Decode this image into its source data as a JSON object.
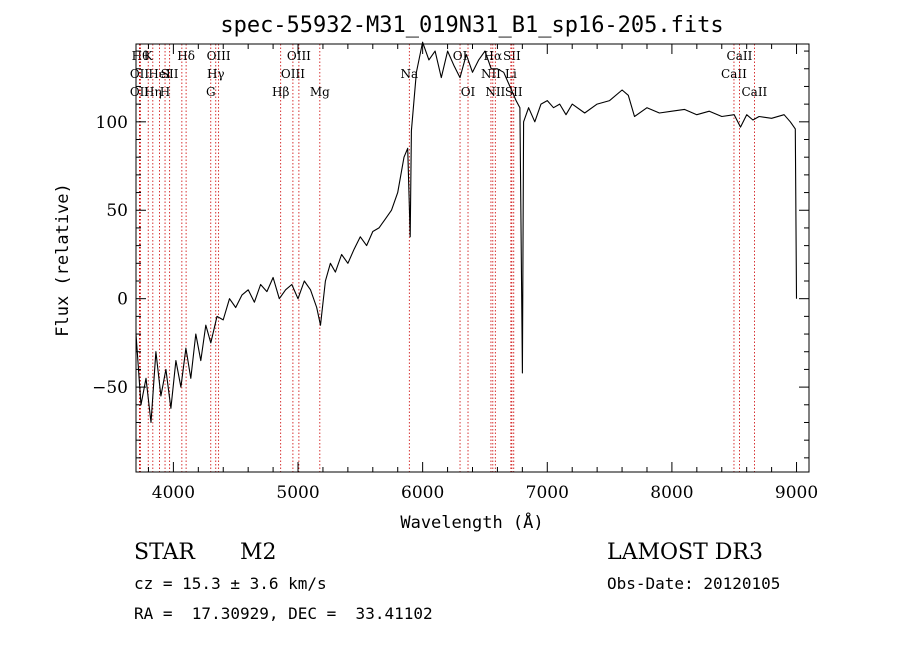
{
  "chart_data": {
    "type": "line",
    "title": "spec-55932-M31_019N31_B1_sp16-205.fits",
    "xlabel": "Wavelength (Å)",
    "ylabel": "Flux (relative)",
    "xlim": [
      3700,
      9100
    ],
    "ylim": [
      -98,
      144
    ],
    "xticks": [
      4000,
      5000,
      6000,
      7000,
      8000,
      9000
    ],
    "yticks": [
      -50,
      0,
      50,
      100
    ],
    "grid": false,
    "series": [
      {
        "color": "#000000",
        "points": [
          [
            3700,
            -20
          ],
          [
            3740,
            -60
          ],
          [
            3780,
            -45
          ],
          [
            3820,
            -70
          ],
          [
            3860,
            -30
          ],
          [
            3900,
            -55
          ],
          [
            3940,
            -40
          ],
          [
            3980,
            -62
          ],
          [
            4020,
            -35
          ],
          [
            4060,
            -50
          ],
          [
            4100,
            -28
          ],
          [
            4140,
            -45
          ],
          [
            4180,
            -20
          ],
          [
            4220,
            -35
          ],
          [
            4260,
            -15
          ],
          [
            4300,
            -25
          ],
          [
            4350,
            -10
          ],
          [
            4400,
            -12
          ],
          [
            4450,
            0
          ],
          [
            4500,
            -5
          ],
          [
            4550,
            2
          ],
          [
            4600,
            5
          ],
          [
            4650,
            -2
          ],
          [
            4700,
            8
          ],
          [
            4750,
            4
          ],
          [
            4800,
            12
          ],
          [
            4850,
            0
          ],
          [
            4900,
            5
          ],
          [
            4950,
            8
          ],
          [
            5000,
            0
          ],
          [
            5050,
            10
          ],
          [
            5100,
            5
          ],
          [
            5150,
            -5
          ],
          [
            5180,
            -15
          ],
          [
            5220,
            10
          ],
          [
            5260,
            20
          ],
          [
            5300,
            15
          ],
          [
            5350,
            25
          ],
          [
            5400,
            20
          ],
          [
            5450,
            28
          ],
          [
            5500,
            35
          ],
          [
            5550,
            30
          ],
          [
            5600,
            38
          ],
          [
            5650,
            40
          ],
          [
            5700,
            45
          ],
          [
            5750,
            50
          ],
          [
            5800,
            60
          ],
          [
            5850,
            80
          ],
          [
            5880,
            85
          ],
          [
            5900,
            35
          ],
          [
            5910,
            95
          ],
          [
            5950,
            128
          ],
          [
            6000,
            145
          ],
          [
            6050,
            135
          ],
          [
            6100,
            140
          ],
          [
            6150,
            125
          ],
          [
            6200,
            140
          ],
          [
            6250,
            132
          ],
          [
            6300,
            125
          ],
          [
            6350,
            138
          ],
          [
            6400,
            128
          ],
          [
            6450,
            135
          ],
          [
            6500,
            140
          ],
          [
            6550,
            130
          ],
          [
            6600,
            130
          ],
          [
            6650,
            128
          ],
          [
            6700,
            120
          ],
          [
            6750,
            112
          ],
          [
            6780,
            108
          ],
          [
            6800,
            -42
          ],
          [
            6810,
            100
          ],
          [
            6850,
            108
          ],
          [
            6900,
            100
          ],
          [
            6950,
            110
          ],
          [
            7000,
            112
          ],
          [
            7050,
            108
          ],
          [
            7100,
            110
          ],
          [
            7150,
            104
          ],
          [
            7200,
            110
          ],
          [
            7300,
            105
          ],
          [
            7400,
            110
          ],
          [
            7500,
            112
          ],
          [
            7600,
            118
          ],
          [
            7650,
            115
          ],
          [
            7700,
            103
          ],
          [
            7800,
            108
          ],
          [
            7900,
            105
          ],
          [
            8000,
            106
          ],
          [
            8100,
            107
          ],
          [
            8200,
            104
          ],
          [
            8300,
            106
          ],
          [
            8400,
            103
          ],
          [
            8500,
            104
          ],
          [
            8550,
            97
          ],
          [
            8600,
            104
          ],
          [
            8650,
            101
          ],
          [
            8700,
            103
          ],
          [
            8800,
            102
          ],
          [
            8900,
            104
          ],
          [
            8950,
            100
          ],
          [
            8990,
            96
          ],
          [
            9000,
            0
          ]
        ]
      }
    ],
    "lines": [
      {
        "x": 3736,
        "label": "Hθ",
        "row": 0
      },
      {
        "x": 3728,
        "label": "OII",
        "row": 1
      },
      {
        "x": 3728,
        "label": "OII",
        "row": 2
      },
      {
        "x": 3798,
        "label": "K",
        "row": 0
      },
      {
        "x": 3835,
        "label": "Hη",
        "row": 2
      },
      {
        "x": 3889,
        "label": "HeI",
        "row": 1
      },
      {
        "x": 3933,
        "label": "H",
        "row": 2
      },
      {
        "x": 3970,
        "label": "SII",
        "row": 1
      },
      {
        "x": 4102,
        "label": "Hδ",
        "row": 0
      },
      {
        "x": 4068,
        "label": "",
        "row": -1
      },
      {
        "x": 4300,
        "label": "G",
        "row": 2
      },
      {
        "x": 4340,
        "label": "Hγ",
        "row": 1
      },
      {
        "x": 4363,
        "label": "OIII",
        "row": 0
      },
      {
        "x": 4861,
        "label": "Hβ",
        "row": 2
      },
      {
        "x": 4959,
        "label": "OIII",
        "row": 1
      },
      {
        "x": 5007,
        "label": "OIII",
        "row": 0
      },
      {
        "x": 5175,
        "label": "Mg",
        "row": 2
      },
      {
        "x": 5893,
        "label": "Na",
        "row": 1
      },
      {
        "x": 6300,
        "label": "OI",
        "row": 0
      },
      {
        "x": 6364,
        "label": "OI",
        "row": 2
      },
      {
        "x": 6548,
        "label": "NII",
        "row": 1
      },
      {
        "x": 6563,
        "label": "Hα",
        "row": 0
      },
      {
        "x": 6583,
        "label": "NII",
        "row": 2
      },
      {
        "x": 6716,
        "label": "SII",
        "row": 0
      },
      {
        "x": 6731,
        "label": "SII",
        "row": 2
      },
      {
        "x": 6708,
        "label": "Li",
        "row": 1
      },
      {
        "x": 8498,
        "label": "CaII",
        "row": 1
      },
      {
        "x": 8542,
        "label": "CaII",
        "row": 0
      },
      {
        "x": 8662,
        "label": "CaII",
        "row": 2
      }
    ],
    "line_color": "#cc0000"
  },
  "info": {
    "object_class": "STAR",
    "subclass": "M2",
    "survey": "LAMOST DR3",
    "cz": "cz = 15.3 ± 3.6 km/s",
    "obs_date": "Obs-Date: 20120105",
    "coords": "RA =  17.30929, DEC =  33.41102"
  }
}
